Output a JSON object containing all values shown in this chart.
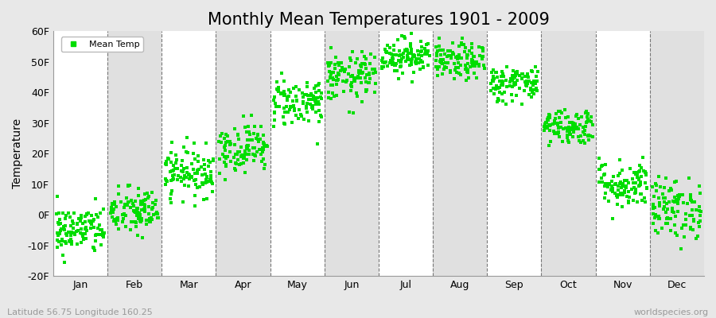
{
  "title": "Monthly Mean Temperatures 1901 - 2009",
  "ylabel": "Temperature",
  "subtitle": "Latitude 56.75 Longitude 160.25",
  "watermark": "worldspecies.org",
  "legend_label": "Mean Temp",
  "dot_color": "#00dd00",
  "background_color": "#e8e8e8",
  "band_colors": [
    "#ffffff",
    "#e0e0e0"
  ],
  "ylim": [
    -20,
    60
  ],
  "yticks": [
    -20,
    -10,
    0,
    10,
    20,
    30,
    40,
    50,
    60
  ],
  "months": [
    "Jan",
    "Feb",
    "Mar",
    "Apr",
    "May",
    "Jun",
    "Jul",
    "Aug",
    "Sep",
    "Oct",
    "Nov",
    "Dec"
  ],
  "month_means": [
    -5,
    1,
    14,
    22,
    37,
    45,
    52,
    50,
    43,
    29,
    10,
    2
  ],
  "month_stds": [
    4,
    4,
    4,
    4,
    4,
    4,
    3,
    3,
    3,
    3,
    4,
    5
  ],
  "n_years": 109,
  "title_fontsize": 15,
  "axis_fontsize": 10,
  "tick_fontsize": 9
}
